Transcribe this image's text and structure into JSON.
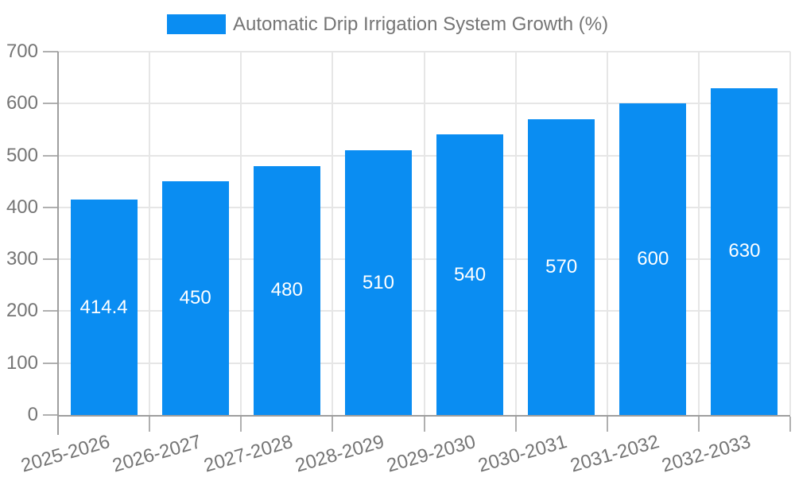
{
  "legend": {
    "label": "Automatic Drip Irrigation System Growth (%)"
  },
  "colors": {
    "bar": "#0a8df2",
    "axis": "#9e9e9e",
    "tick": "#b0b0b0",
    "grid": "#e6e6e6",
    "label_text": "#757575",
    "bar_label_text": "#ffffff",
    "background": "#ffffff"
  },
  "chart_data": {
    "type": "bar",
    "title": "Automatic Drip Irrigation System Growth (%)",
    "categories": [
      "2025-2026",
      "2026-2027",
      "2027-2028",
      "2028-2029",
      "2029-2030",
      "2030-2031",
      "2031-2032",
      "2032-2033"
    ],
    "values": [
      414.4,
      450,
      480,
      510,
      540,
      570,
      600,
      630
    ],
    "value_labels": [
      "414.4",
      "450",
      "480",
      "510",
      "540",
      "570",
      "600",
      "630"
    ],
    "series_name": "Automatic Drip Irrigation System Growth (%)",
    "xlabel": "",
    "ylabel": "",
    "ylim": [
      0,
      700
    ],
    "yticks": [
      0,
      100,
      200,
      300,
      400,
      500,
      600,
      700
    ],
    "grid": true,
    "legend_position": "top-center",
    "value_label_position": "inside-middle",
    "x_tick_label_rotation_deg": -16
  }
}
